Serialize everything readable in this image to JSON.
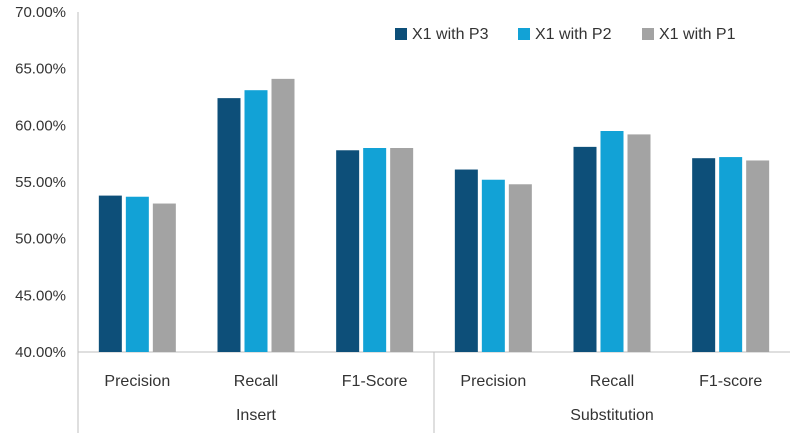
{
  "chart_data": {
    "type": "bar",
    "title": "",
    "xlabel": "",
    "ylabel": "",
    "ylim": [
      0.4,
      0.7
    ],
    "yticks": [
      "40.00%",
      "45.00%",
      "50.00%",
      "55.00%",
      "60.00%",
      "65.00%",
      "70.00%"
    ],
    "ytick_values": [
      0.4,
      0.45,
      0.5,
      0.55,
      0.6,
      0.65,
      0.7
    ],
    "groups": [
      {
        "label": "Insert",
        "categories": [
          "Precision",
          "Recall",
          "F1-Score"
        ]
      },
      {
        "label": "Substitution",
        "categories": [
          "Precision",
          "Recall",
          "F1-score"
        ]
      }
    ],
    "categories": [
      "Precision",
      "Recall",
      "F1-Score",
      "Precision",
      "Recall",
      "F1-score"
    ],
    "series": [
      {
        "name": "X1 with P3",
        "color": "#0d4f79",
        "values": [
          0.538,
          0.624,
          0.578,
          0.561,
          0.581,
          0.571
        ]
      },
      {
        "name": "X1 with P2",
        "color": "#12a2d6",
        "values": [
          0.537,
          0.631,
          0.58,
          0.552,
          0.595,
          0.572
        ]
      },
      {
        "name": "X1 with P1",
        "color": "#a3a3a3",
        "values": [
          0.531,
          0.641,
          0.58,
          0.548,
          0.592,
          0.569
        ]
      }
    ],
    "grid": false,
    "legend_position": "top-right"
  }
}
